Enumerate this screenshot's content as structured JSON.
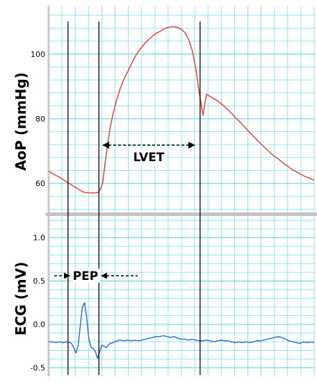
{
  "chart_data": [
    {
      "type": "line",
      "title": "",
      "ylabel": "AoP (mmHg)",
      "xlabel": "",
      "ylim": [
        51,
        115
      ],
      "yticks": [
        "60",
        "80",
        "100"
      ],
      "ytick_values": [
        60,
        80,
        100
      ],
      "grid": true,
      "line_color": "#e8413a",
      "x": [
        0,
        5,
        10,
        15,
        20,
        25,
        30,
        35,
        40,
        45,
        50,
        55,
        60,
        65,
        70,
        75,
        80,
        85,
        90,
        95,
        100,
        105,
        110,
        115,
        120,
        125,
        130,
        135,
        140,
        145,
        150,
        155,
        160,
        165,
        170,
        175,
        180,
        185,
        190,
        195,
        200,
        205,
        210,
        215,
        220,
        225,
        230,
        235,
        240,
        245,
        250,
        255,
        260,
        265,
        270,
        275,
        280,
        285,
        290,
        295,
        300,
        305,
        310,
        315,
        320,
        325,
        330,
        335,
        340,
        345,
        350,
        355,
        360,
        365,
        370
      ],
      "series": [
        {
          "values": [
            63.8,
            63.1,
            62.5,
            62.0,
            61.2,
            60.5,
            59.8,
            59.1,
            58.4,
            57.7,
            57.2,
            57.1,
            57.1,
            57.1,
            57.3,
            59.8,
            68.6,
            76.5,
            81.8,
            86.0,
            89.5,
            92.3,
            94.5,
            96.8,
            99.0,
            100.8,
            102.2,
            103.6,
            104.6,
            105.6,
            106.5,
            107.0,
            107.7,
            108.2,
            108.4,
            108.5,
            108.2,
            107.6,
            106.6,
            104.6,
            101.1,
            95.7,
            87.8,
            81.0,
            87.6,
            86.9,
            86.2,
            85.6,
            84.7,
            83.8,
            82.7,
            81.6,
            80.4,
            79.3,
            78.2,
            77.0,
            75.8,
            74.7,
            73.5,
            72.4,
            71.3,
            70.3,
            69.2,
            68.3,
            67.6,
            66.6,
            65.8,
            65.0,
            64.2,
            63.6,
            63.0,
            62.4,
            61.9,
            61.4,
            61.0
          ]
        }
      ]
    },
    {
      "type": "line",
      "title": "",
      "ylabel": "ECG (mV)",
      "xlabel": "",
      "ylim": [
        -0.6,
        1.25
      ],
      "yticks": [
        "1.0",
        "0.5",
        "0.0",
        "-0.5"
      ],
      "ytick_values": [
        1.0,
        0.5,
        0.0,
        -0.5
      ],
      "grid": true,
      "line_color": "#2f6fd0",
      "x": [
        0,
        5,
        10,
        15,
        20,
        25,
        30,
        32,
        35,
        38,
        41,
        44,
        47,
        50,
        53,
        56,
        59,
        62,
        65,
        68,
        71,
        74,
        77,
        80,
        85,
        90,
        95,
        100,
        105,
        110,
        115,
        120,
        125,
        130,
        135,
        140,
        145,
        150,
        155,
        160,
        165,
        170,
        175,
        180,
        185,
        190,
        195,
        200,
        205,
        210,
        215,
        220,
        225,
        230,
        235,
        240,
        245,
        250,
        255,
        260,
        265,
        270,
        275,
        280,
        285,
        290,
        295,
        300,
        305,
        310,
        315,
        320,
        325,
        330,
        335,
        340,
        345,
        350,
        355,
        360,
        365,
        370
      ],
      "series": [
        {
          "values": [
            -0.2,
            -0.2,
            -0.21,
            -0.2,
            -0.21,
            -0.2,
            -0.21,
            -0.22,
            -0.27,
            -0.33,
            -0.25,
            -0.02,
            0.2,
            0.25,
            0.08,
            -0.17,
            -0.26,
            -0.28,
            -0.31,
            -0.39,
            -0.32,
            -0.24,
            -0.25,
            -0.27,
            -0.22,
            -0.21,
            -0.19,
            -0.18,
            -0.19,
            -0.18,
            -0.19,
            -0.18,
            -0.19,
            -0.18,
            -0.17,
            -0.16,
            -0.15,
            -0.14,
            -0.14,
            -0.13,
            -0.14,
            -0.15,
            -0.14,
            -0.16,
            -0.17,
            -0.17,
            -0.18,
            -0.17,
            -0.18,
            -0.19,
            -0.19,
            -0.18,
            -0.19,
            -0.2,
            -0.19,
            -0.18,
            -0.19,
            -0.19,
            -0.2,
            -0.21,
            -0.2,
            -0.21,
            -0.2,
            -0.21,
            -0.2,
            -0.19,
            -0.19,
            -0.18,
            -0.17,
            -0.16,
            -0.15,
            -0.14,
            -0.15,
            -0.17,
            -0.19,
            -0.2,
            -0.21,
            -0.22,
            -0.2,
            -0.21,
            -0.2,
            -0.21
          ]
        }
      ]
    }
  ],
  "annotations": {
    "lvet": "LVET",
    "pep": "PEP"
  },
  "event_markers_x": [
    27,
    70,
    211
  ]
}
